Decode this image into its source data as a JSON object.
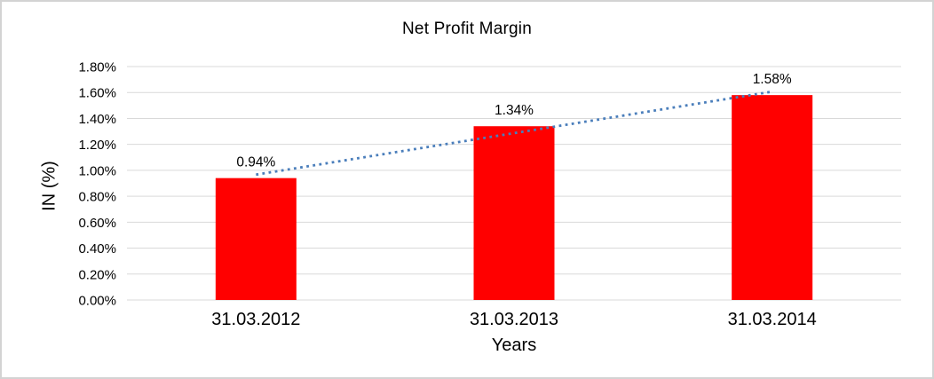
{
  "chart_data": {
    "type": "bar",
    "title": "Net Profit Margin",
    "xlabel": "Years",
    "ylabel": "IN (%)",
    "categories": [
      "31.03.2012",
      "31.03.2013",
      "31.03.2014"
    ],
    "values": [
      0.94,
      1.34,
      1.58
    ],
    "data_labels": [
      "0.94%",
      "1.34%",
      "1.58%"
    ],
    "y_ticks": [
      {
        "value": 0.0,
        "label": "0.00%"
      },
      {
        "value": 0.2,
        "label": "0.20%"
      },
      {
        "value": 0.4,
        "label": "0.40%"
      },
      {
        "value": 0.6,
        "label": "0.60%"
      },
      {
        "value": 0.8,
        "label": "0.80%"
      },
      {
        "value": 1.0,
        "label": "1.00%"
      },
      {
        "value": 1.2,
        "label": "1.20%"
      },
      {
        "value": 1.4,
        "label": "1.40%"
      },
      {
        "value": 1.6,
        "label": "1.60%"
      },
      {
        "value": 1.8,
        "label": "1.80%"
      }
    ],
    "ylim": [
      0,
      1.8
    ],
    "grid": true,
    "legend_position": "none",
    "bar_color": "#ff0000",
    "gridline_color": "#d9d9d9",
    "text_color": "#000000",
    "trendline": {
      "type": "linear",
      "style": "dotted",
      "color": "#4a7ebb"
    }
  }
}
